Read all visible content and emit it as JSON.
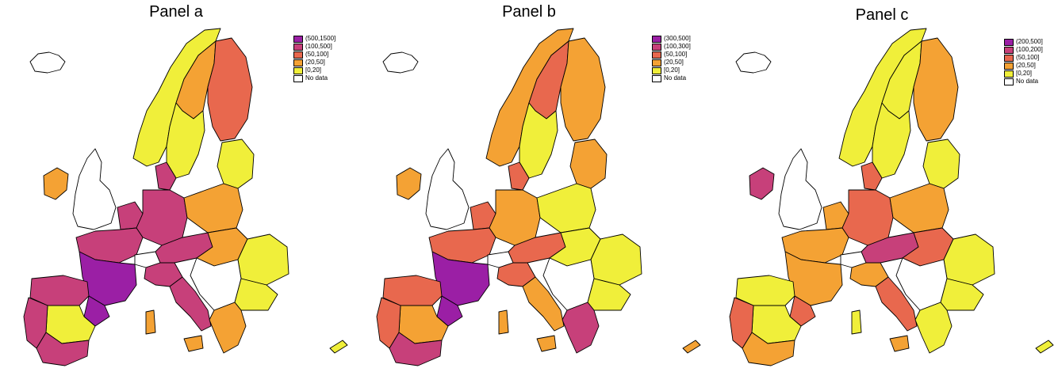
{
  "colors": {
    "purple": "#9b1fa5",
    "magenta": "#c7407a",
    "orange_red": "#e8684e",
    "orange": "#f4a234",
    "yellow": "#f0ef3a",
    "no_data": "#ffffff"
  },
  "panels": [
    {
      "title": "Panel a",
      "legend": [
        {
          "label": "(500,1500]",
          "color": "#9b1fa5"
        },
        {
          "label": "(100,500]",
          "color": "#c7407a"
        },
        {
          "label": "(50,100]",
          "color": "#e8684e"
        },
        {
          "label": "(20,50]",
          "color": "#f4a234"
        },
        {
          "label": "[0,20]",
          "color": "#f0ef3a"
        },
        {
          "label": "No data",
          "color": "#ffffff"
        }
      ]
    },
    {
      "title": "Panel b",
      "legend": [
        {
          "label": "(300,500]",
          "color": "#9b1fa5"
        },
        {
          "label": "(100,300]",
          "color": "#c7407a"
        },
        {
          "label": "(50,100]",
          "color": "#e8684e"
        },
        {
          "label": "(20,50]",
          "color": "#f4a234"
        },
        {
          "label": "[0,20]",
          "color": "#f0ef3a"
        },
        {
          "label": "No data",
          "color": "#ffffff"
        }
      ]
    },
    {
      "title": "Panel c",
      "legend": [
        {
          "label": "(200,500]",
          "color": "#9b1fa5"
        },
        {
          "label": "(100,200]",
          "color": "#c7407a"
        },
        {
          "label": "(50,100]",
          "color": "#e8684e"
        },
        {
          "label": "(20,50]",
          "color": "#f4a234"
        },
        {
          "label": "[0,20]",
          "color": "#f0ef3a"
        },
        {
          "label": "No data",
          "color": "#ffffff"
        }
      ]
    }
  ],
  "regions": [
    {
      "name": "iceland",
      "a": "no_data",
      "b": "no_data",
      "c": "no_data"
    },
    {
      "name": "norway",
      "a": "yellow",
      "b": "orange",
      "c": "yellow"
    },
    {
      "name": "sweden-north",
      "a": "orange",
      "b": "orange_red",
      "c": "yellow"
    },
    {
      "name": "sweden-south",
      "a": "yellow",
      "b": "yellow",
      "c": "yellow"
    },
    {
      "name": "finland",
      "a": "orange_red",
      "b": "orange",
      "c": "orange"
    },
    {
      "name": "baltics",
      "a": "yellow",
      "b": "orange",
      "c": "yellow"
    },
    {
      "name": "ireland",
      "a": "orange",
      "b": "orange",
      "c": "magenta"
    },
    {
      "name": "uk",
      "a": "no_data",
      "b": "no_data",
      "c": "no_data"
    },
    {
      "name": "benelux",
      "a": "magenta",
      "b": "orange_red",
      "c": "orange"
    },
    {
      "name": "france-north",
      "a": "magenta",
      "b": "orange_red",
      "c": "orange"
    },
    {
      "name": "france-south",
      "a": "purple",
      "b": "purple",
      "c": "orange"
    },
    {
      "name": "germany",
      "a": "magenta",
      "b": "orange",
      "c": "orange_red"
    },
    {
      "name": "denmark",
      "a": "magenta",
      "b": "orange_red",
      "c": "orange_red"
    },
    {
      "name": "poland",
      "a": "orange",
      "b": "yellow",
      "c": "orange"
    },
    {
      "name": "czech-austria",
      "a": "magenta",
      "b": "orange_red",
      "c": "magenta"
    },
    {
      "name": "hungary-slovakia",
      "a": "orange",
      "b": "yellow",
      "c": "orange_red"
    },
    {
      "name": "romania",
      "a": "yellow",
      "b": "yellow",
      "c": "yellow"
    },
    {
      "name": "bulgaria",
      "a": "yellow",
      "b": "yellow",
      "c": "yellow"
    },
    {
      "name": "balkans",
      "a": "no_data",
      "b": "no_data",
      "c": "no_data"
    },
    {
      "name": "switzerland",
      "a": "no_data",
      "b": "no_data",
      "c": "no_data"
    },
    {
      "name": "italy-north",
      "a": "magenta",
      "b": "orange_red",
      "c": "orange"
    },
    {
      "name": "italy-south",
      "a": "magenta",
      "b": "orange",
      "c": "orange_red"
    },
    {
      "name": "sicily",
      "a": "orange",
      "b": "orange",
      "c": "orange"
    },
    {
      "name": "sardinia",
      "a": "orange",
      "b": "orange",
      "c": "yellow"
    },
    {
      "name": "spain-north",
      "a": "magenta",
      "b": "orange_red",
      "c": "yellow"
    },
    {
      "name": "spain-center",
      "a": "yellow",
      "b": "orange",
      "c": "yellow"
    },
    {
      "name": "catalonia",
      "a": "purple",
      "b": "purple",
      "c": "orange_red"
    },
    {
      "name": "spain-south",
      "a": "magenta",
      "b": "magenta",
      "c": "orange"
    },
    {
      "name": "portugal",
      "a": "magenta",
      "b": "orange_red",
      "c": "orange_red"
    },
    {
      "name": "greece",
      "a": "orange",
      "b": "magenta",
      "c": "yellow"
    },
    {
      "name": "cyprus",
      "a": "yellow",
      "b": "orange",
      "c": "yellow"
    }
  ]
}
